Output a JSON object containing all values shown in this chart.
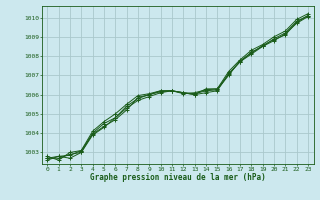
{
  "title": "Graphe pression niveau de la mer (hPa)",
  "background_color": "#cce8ee",
  "grid_color": "#aac8cc",
  "line_color": "#1a5c1a",
  "xlim": [
    -0.5,
    23.5
  ],
  "ylim": [
    1002.4,
    1010.6
  ],
  "yticks": [
    1003,
    1004,
    1005,
    1006,
    1007,
    1008,
    1009,
    1010
  ],
  "xticks": [
    0,
    1,
    2,
    3,
    4,
    5,
    6,
    7,
    8,
    9,
    10,
    11,
    12,
    13,
    14,
    15,
    16,
    17,
    18,
    19,
    20,
    21,
    22,
    23
  ],
  "series": [
    [
      1002.6,
      1002.8,
      1002.7,
      1003.0,
      1003.9,
      1004.3,
      1004.8,
      1005.3,
      1005.7,
      1005.9,
      1006.1,
      1006.2,
      1006.1,
      1006.0,
      1006.1,
      1006.2,
      1007.1,
      1007.7,
      1008.2,
      1008.5,
      1008.9,
      1009.2,
      1009.8,
      1010.1
    ],
    [
      1002.7,
      1002.7,
      1002.9,
      1003.0,
      1004.0,
      1004.5,
      1004.8,
      1005.4,
      1005.8,
      1006.0,
      1006.2,
      1006.2,
      1006.1,
      1006.0,
      1006.3,
      1006.3,
      1007.2,
      1007.8,
      1008.3,
      1008.6,
      1009.0,
      1009.3,
      1009.9,
      1010.2
    ],
    [
      1002.8,
      1002.6,
      1003.0,
      1003.1,
      1004.1,
      1004.6,
      1005.0,
      1005.5,
      1005.95,
      1006.05,
      1006.2,
      1006.2,
      1006.1,
      1006.05,
      1006.2,
      1006.25,
      1007.0,
      1007.75,
      1008.15,
      1008.55,
      1008.85,
      1009.1,
      1009.75,
      1010.1
    ],
    [
      1002.7,
      1002.8,
      1002.85,
      1003.1,
      1003.95,
      1004.35,
      1004.7,
      1005.2,
      1005.85,
      1006.0,
      1006.15,
      1006.2,
      1006.05,
      1006.1,
      1006.25,
      1006.3,
      1007.05,
      1007.7,
      1008.1,
      1008.5,
      1008.8,
      1009.15,
      1009.7,
      1010.05
    ]
  ]
}
